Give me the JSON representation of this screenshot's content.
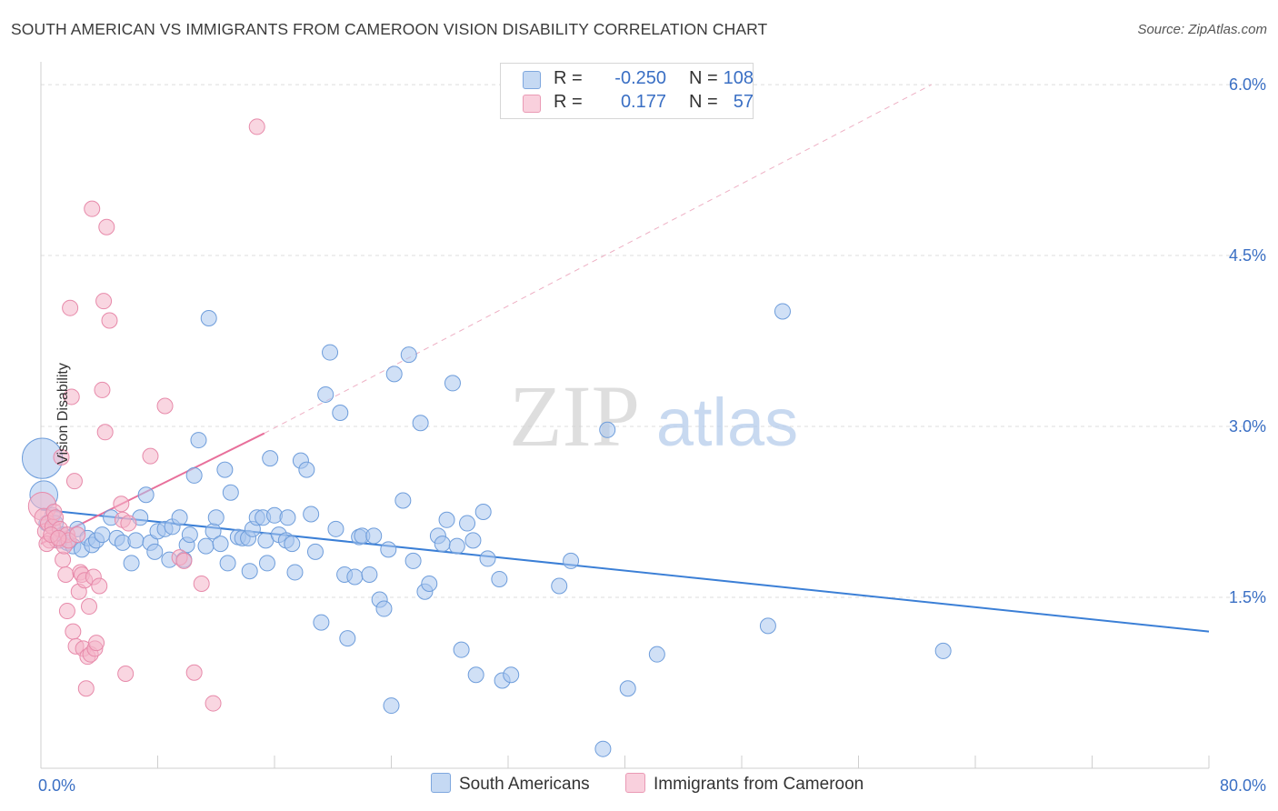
{
  "title": "SOUTH AMERICAN VS IMMIGRANTS FROM CAMEROON VISION DISABILITY CORRELATION CHART",
  "source": "Source: ZipAtlas.com",
  "watermark": {
    "zip": "ZIP",
    "atlas": "atlas"
  },
  "legend": {
    "rows": [
      {
        "label": "R =",
        "r": "-0.250",
        "n_label": "N =",
        "n": "108",
        "color": "#a9c7ee"
      },
      {
        "label": "R =",
        "r": "0.177",
        "n_label": "N =",
        "n": "57",
        "color": "#f4b5c8"
      }
    ]
  },
  "bottom_legend": {
    "series1": "South Americans",
    "series2": "Immigrants from Cameroon"
  },
  "colors": {
    "blue": "#3b7fd6",
    "pink": "#e8709b",
    "blue_fill": "#a9c7ee",
    "pink_fill": "#f4b5c8",
    "axis_text": "#3a6fc4"
  },
  "chart_data": {
    "type": "scatter",
    "xlabel": "",
    "ylabel": "Vision Disability",
    "xlim": [
      0,
      80
    ],
    "ylim": [
      0,
      6.2
    ],
    "x_tick_labels": [
      "0.0%",
      "80.0%"
    ],
    "y_ticks": [
      1.5,
      3.0,
      4.5,
      6.0
    ],
    "y_tick_labels": [
      "1.5%",
      "3.0%",
      "4.5%",
      "6.0%"
    ],
    "grid": true,
    "series": [
      {
        "name": "South Americans",
        "color": "#3b7fd6",
        "trend": {
          "x": [
            0,
            80
          ],
          "y": [
            2.27,
            1.2
          ]
        },
        "points": [
          [
            0.1,
            2.72,
            2.6
          ],
          [
            0.2,
            2.4,
            1.8
          ],
          [
            0.4,
            2.15,
            1
          ],
          [
            0.8,
            2.22,
            1
          ],
          [
            1,
            2.15,
            1
          ],
          [
            1.3,
            2.0,
            1
          ],
          [
            1.5,
            2.05,
            1
          ],
          [
            1.8,
            1.98,
            1
          ],
          [
            2.2,
            1.95,
            1
          ],
          [
            2.5,
            2.1,
            1
          ],
          [
            2.8,
            1.92,
            1
          ],
          [
            3.2,
            2.02,
            1
          ],
          [
            3.5,
            1.96,
            1
          ],
          [
            3.8,
            2.0,
            1
          ],
          [
            4.2,
            2.05,
            1
          ],
          [
            4.8,
            2.2,
            1
          ],
          [
            5.2,
            2.02,
            1
          ],
          [
            5.6,
            1.98,
            1
          ],
          [
            6.2,
            1.8,
            1
          ],
          [
            6.5,
            2.0,
            1
          ],
          [
            6.8,
            2.2,
            1
          ],
          [
            7.2,
            2.4,
            1
          ],
          [
            7.5,
            1.98,
            1
          ],
          [
            7.8,
            1.9,
            1
          ],
          [
            8,
            2.08,
            1
          ],
          [
            8.5,
            2.1,
            1
          ],
          [
            8.8,
            1.83,
            1
          ],
          [
            9,
            2.12,
            1
          ],
          [
            9.5,
            2.2,
            1
          ],
          [
            9.8,
            1.83,
            1
          ],
          [
            10,
            1.96,
            1
          ],
          [
            10.2,
            2.05,
            1
          ],
          [
            10.5,
            2.57,
            1
          ],
          [
            10.8,
            2.88,
            1
          ],
          [
            11.3,
            1.95,
            1
          ],
          [
            11.5,
            3.95,
            1
          ],
          [
            11.8,
            2.08,
            1
          ],
          [
            12,
            2.2,
            1
          ],
          [
            12.3,
            1.97,
            1
          ],
          [
            12.6,
            2.62,
            1
          ],
          [
            12.8,
            1.8,
            1
          ],
          [
            13,
            2.42,
            1
          ],
          [
            13.5,
            2.03,
            1
          ],
          [
            13.8,
            2.02,
            1
          ],
          [
            14.2,
            2.02,
            1
          ],
          [
            14.3,
            1.73,
            1
          ],
          [
            14.5,
            2.1,
            1
          ],
          [
            14.8,
            2.2,
            1
          ],
          [
            15.2,
            2.2,
            1
          ],
          [
            15.4,
            2.0,
            1
          ],
          [
            15.5,
            1.8,
            1
          ],
          [
            15.7,
            2.72,
            1
          ],
          [
            16,
            2.22,
            1
          ],
          [
            16.3,
            2.05,
            1
          ],
          [
            16.8,
            2.0,
            1
          ],
          [
            16.9,
            2.2,
            1
          ],
          [
            17.2,
            1.97,
            1
          ],
          [
            17.4,
            1.72,
            1
          ],
          [
            17.8,
            2.7,
            1
          ],
          [
            18.2,
            2.62,
            1
          ],
          [
            18.5,
            2.23,
            1
          ],
          [
            18.8,
            1.9,
            1
          ],
          [
            19.2,
            1.28,
            1
          ],
          [
            19.5,
            3.28,
            1
          ],
          [
            19.8,
            3.65,
            1
          ],
          [
            20.2,
            2.1,
            1
          ],
          [
            20.5,
            3.12,
            1
          ],
          [
            20.8,
            1.7,
            1
          ],
          [
            21,
            1.14,
            1
          ],
          [
            21.5,
            1.68,
            1
          ],
          [
            21.8,
            2.03,
            1
          ],
          [
            22,
            2.04,
            1
          ],
          [
            22.5,
            1.7,
            1
          ],
          [
            22.8,
            2.04,
            1
          ],
          [
            23.2,
            1.48,
            1
          ],
          [
            23.5,
            1.4,
            1
          ],
          [
            23.8,
            1.92,
            1
          ],
          [
            24,
            0.55,
            1
          ],
          [
            24.2,
            3.46,
            1
          ],
          [
            24.8,
            2.35,
            1
          ],
          [
            25.2,
            3.63,
            1
          ],
          [
            25.5,
            1.82,
            1
          ],
          [
            26,
            3.03,
            1
          ],
          [
            26.3,
            1.55,
            1
          ],
          [
            26.6,
            1.62,
            1
          ],
          [
            27.2,
            2.04,
            1
          ],
          [
            27.5,
            1.97,
            1
          ],
          [
            27.8,
            2.18,
            1
          ],
          [
            28.2,
            3.38,
            1
          ],
          [
            28.5,
            1.95,
            1
          ],
          [
            28.8,
            1.04,
            1
          ],
          [
            29.2,
            2.15,
            1
          ],
          [
            29.6,
            2.0,
            1
          ],
          [
            29.8,
            0.82,
            1
          ],
          [
            30.3,
            2.25,
            1
          ],
          [
            30.6,
            1.84,
            1
          ],
          [
            31.4,
            1.66,
            1
          ],
          [
            31.6,
            0.77,
            1
          ],
          [
            32.2,
            0.82,
            1
          ],
          [
            35.5,
            1.6,
            1
          ],
          [
            36.3,
            1.82,
            1
          ],
          [
            38.5,
            0.17,
            1
          ],
          [
            38.8,
            2.97,
            1
          ],
          [
            40.2,
            0.7,
            1
          ],
          [
            42.2,
            1.0,
            1
          ],
          [
            49.8,
            1.25,
            1
          ],
          [
            50.8,
            4.01,
            1
          ],
          [
            61.8,
            1.03,
            1
          ]
        ]
      },
      {
        "name": "Immigrants from Cameroon",
        "color": "#e8709b",
        "trend": {
          "x": [
            0,
            15.3
          ],
          "y": [
            1.97,
            2.94
          ]
        },
        "trend_dash": {
          "x": [
            15.3,
            61
          ],
          "y": [
            2.94,
            6.0
          ]
        },
        "points": [
          [
            0.1,
            2.3,
            1.8
          ],
          [
            0.2,
            2.2,
            1.2
          ],
          [
            0.3,
            2.08,
            1
          ],
          [
            0.5,
            2.15,
            1
          ],
          [
            0.6,
            2.0,
            1
          ],
          [
            0.8,
            2.12,
            1
          ],
          [
            0.9,
            2.25,
            1
          ],
          [
            1,
            2.2,
            1
          ],
          [
            1.1,
            2.0,
            1
          ],
          [
            1.3,
            2.1,
            1
          ],
          [
            1.4,
            2.73,
            1
          ],
          [
            1.5,
            1.83,
            1
          ],
          [
            1.6,
            1.95,
            1
          ],
          [
            1.7,
            1.7,
            1
          ],
          [
            1.8,
            2.05,
            1
          ],
          [
            1.8,
            1.38,
            1
          ],
          [
            1.9,
            2.0,
            1
          ],
          [
            2,
            4.04,
            1
          ],
          [
            2.1,
            3.26,
            1
          ],
          [
            2.2,
            1.2,
            1
          ],
          [
            2.3,
            2.52,
            1
          ],
          [
            2.4,
            1.07,
            1
          ],
          [
            2.5,
            2.05,
            1
          ],
          [
            2.6,
            1.55,
            1
          ],
          [
            2.7,
            1.72,
            1
          ],
          [
            2.8,
            1.7,
            1
          ],
          [
            2.9,
            1.05,
            1
          ],
          [
            3,
            1.65,
            1
          ],
          [
            3.1,
            0.7,
            1
          ],
          [
            3.2,
            0.98,
            1
          ],
          [
            3.3,
            1.42,
            1
          ],
          [
            3.4,
            1.0,
            1
          ],
          [
            3.5,
            4.91,
            1
          ],
          [
            3.6,
            1.68,
            1
          ],
          [
            3.7,
            1.05,
            1
          ],
          [
            3.8,
            1.1,
            1
          ],
          [
            4,
            1.6,
            1
          ],
          [
            4.2,
            3.32,
            1
          ],
          [
            4.3,
            4.1,
            1
          ],
          [
            4.4,
            2.95,
            1
          ],
          [
            4.5,
            4.75,
            1
          ],
          [
            4.7,
            3.93,
            1
          ],
          [
            5.5,
            2.32,
            1
          ],
          [
            5.6,
            2.18,
            1
          ],
          [
            5.8,
            0.83,
            1
          ],
          [
            6,
            2.15,
            1
          ],
          [
            7.5,
            2.74,
            1
          ],
          [
            8.5,
            3.18,
            1
          ],
          [
            9.5,
            1.85,
            1
          ],
          [
            9.8,
            1.82,
            1
          ],
          [
            10.5,
            0.84,
            1
          ],
          [
            11,
            1.62,
            1
          ],
          [
            11.8,
            0.57,
            1
          ],
          [
            14.8,
            5.63,
            1
          ],
          [
            0.4,
            1.97,
            1
          ],
          [
            0.7,
            2.05,
            1
          ],
          [
            1.2,
            2.02,
            1
          ]
        ]
      }
    ]
  }
}
